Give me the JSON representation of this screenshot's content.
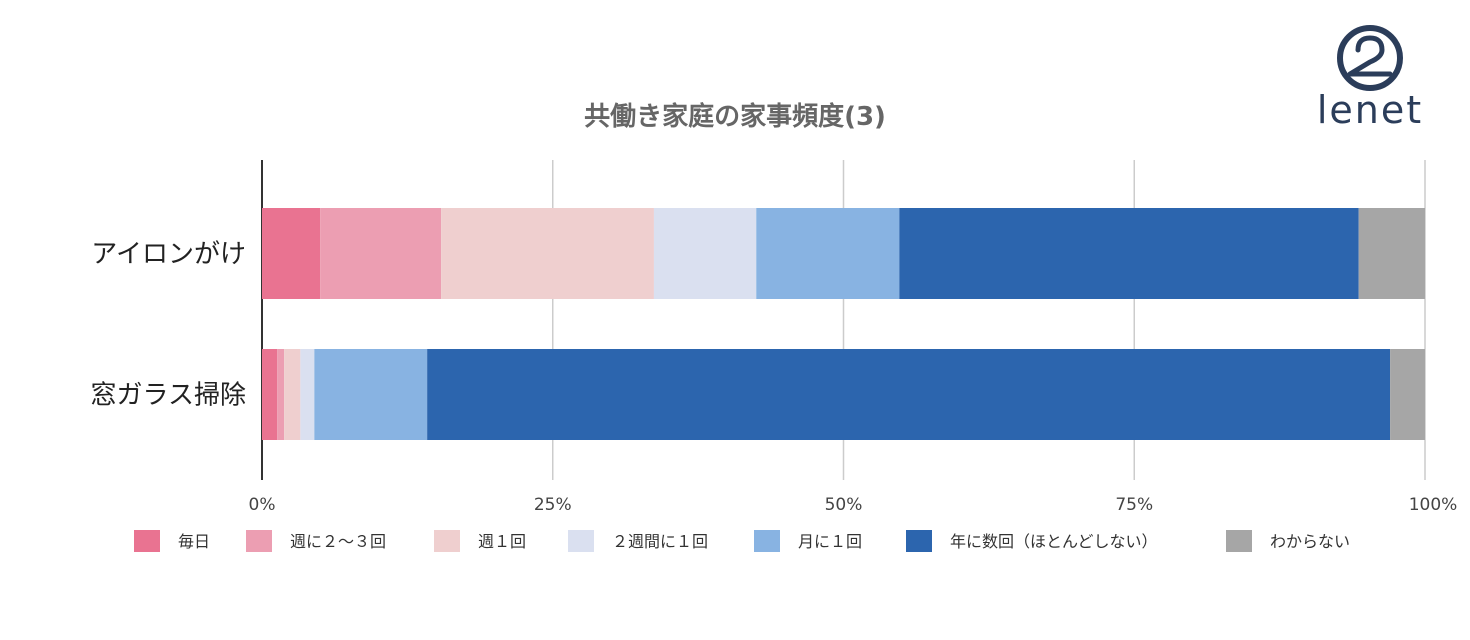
{
  "chart_data": {
    "type": "bar",
    "orientation": "horizontal",
    "stacked": true,
    "percent": true,
    "title": "共働き家庭の家事頻度(3)",
    "categories": [
      "アイロンがけ",
      "窓ガラス掃除"
    ],
    "series": [
      {
        "name": "毎日",
        "color": "#E97391",
        "values": [
          5.0,
          1.3
        ]
      },
      {
        "name": "週に２〜３回",
        "color": "#EC9EB2",
        "values": [
          10.4,
          0.6
        ]
      },
      {
        "name": "週１回",
        "color": "#EFCFCF",
        "values": [
          18.3,
          1.4
        ]
      },
      {
        "name": "２週間に１回",
        "color": "#DAE0F0",
        "values": [
          8.8,
          1.2
        ]
      },
      {
        "name": "月に１回",
        "color": "#88B3E2",
        "values": [
          12.3,
          9.7
        ]
      },
      {
        "name": "年に数回（ほとんどしない）",
        "color": "#2C65AE",
        "values": [
          39.5,
          82.8
        ]
      },
      {
        "name": "わからない",
        "color": "#A6A6A6",
        "values": [
          5.7,
          3.0
        ]
      }
    ],
    "xlim": [
      0,
      100
    ],
    "xticks": [
      "0%",
      "25%",
      "50%",
      "75%",
      "100%"
    ],
    "grid": true,
    "legend": "bottom"
  },
  "logo": {
    "text": "lenet",
    "icon": "hanger-icon",
    "color": "#2b3d5a"
  }
}
